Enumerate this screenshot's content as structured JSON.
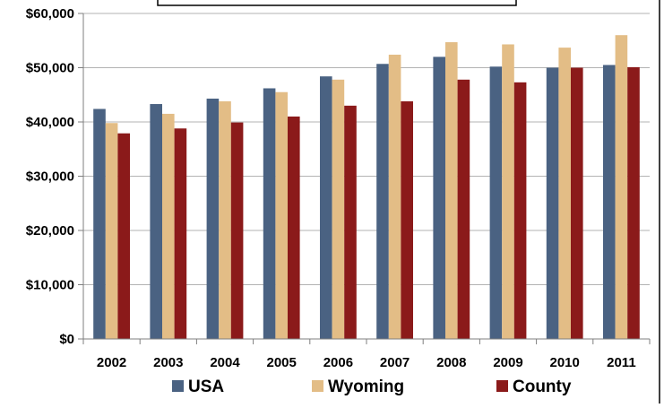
{
  "chart_data": {
    "type": "bar",
    "categories": [
      "2002",
      "2003",
      "2004",
      "2005",
      "2006",
      "2007",
      "2008",
      "2009",
      "2010",
      "2011"
    ],
    "series": [
      {
        "name": "USA",
        "color": "#4a6282",
        "values": [
          42400,
          43300,
          44300,
          46200,
          48400,
          50700,
          52000,
          50200,
          50000,
          50500
        ]
      },
      {
        "name": "Wyoming",
        "color": "#e3bd86",
        "values": [
          39800,
          41500,
          43800,
          45500,
          47800,
          52400,
          54700,
          54300,
          53700,
          56000
        ]
      },
      {
        "name": "County",
        "color": "#8b1a1a",
        "values": [
          37900,
          38800,
          39900,
          41000,
          43000,
          43800,
          47800,
          47300,
          50000,
          50100
        ]
      }
    ],
    "y_ticks": [
      "$0",
      "$10,000",
      "$20,000",
      "$30,000",
      "$40,000",
      "$50,000",
      "$60,000"
    ],
    "ylim": [
      0,
      60000
    ],
    "grid": true,
    "legend_position": "bottom",
    "title": "",
    "xlabel": "",
    "ylabel": ""
  }
}
